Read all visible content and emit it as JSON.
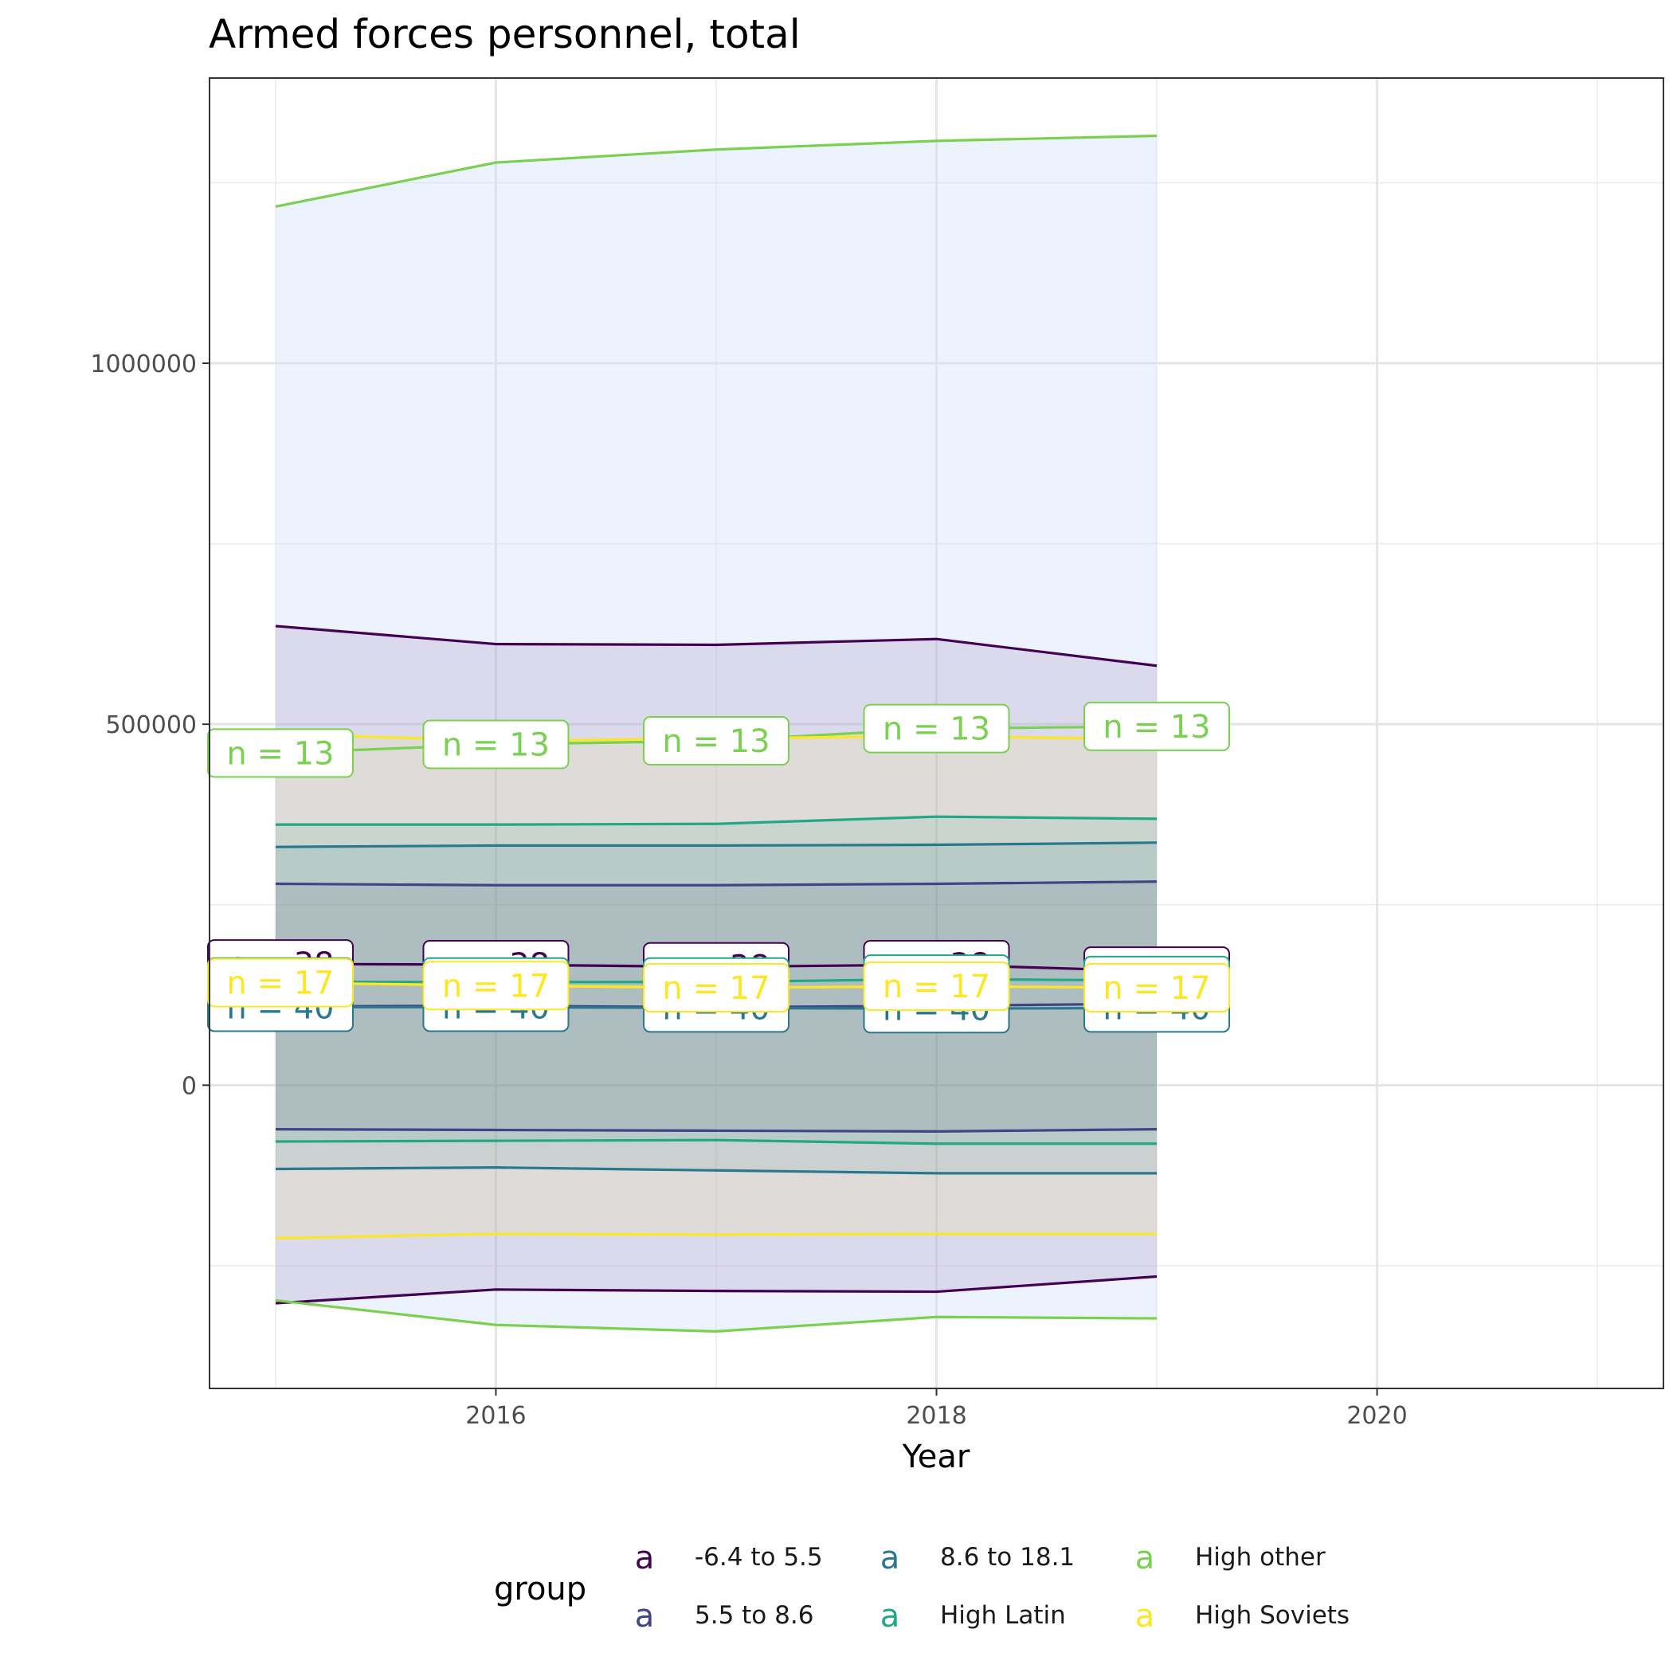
{
  "chart_data": {
    "type": "line",
    "title": "Armed forces personnel, total",
    "xlabel": "Year",
    "ylabel": "",
    "xlim": [
      2014.7,
      2021.3
    ],
    "ylim": [
      -420000,
      1395000
    ],
    "x_ticks": [
      2016,
      2018,
      2020
    ],
    "y_ticks": [
      0,
      500000,
      1000000
    ],
    "x_tick_labels": [
      "2016",
      "2018",
      "2020"
    ],
    "y_tick_labels": [
      "0",
      "500000",
      "1000000"
    ],
    "grid": true,
    "legend_position": "bottom",
    "legend_title": "group",
    "legend_key_glyph": "a",
    "x": [
      2015,
      2016,
      2017,
      2018,
      2019
    ],
    "series": [
      {
        "name": "-6.4 to 5.5",
        "color": "#440154",
        "label_text": "n = 38",
        "mean": [
          168000,
          167000,
          164000,
          167000,
          158000
        ],
        "upper": [
          636000,
          611000,
          610000,
          618000,
          581000
        ],
        "lower": [
          -302000,
          -283000,
          -285000,
          -286000,
          -265000
        ]
      },
      {
        "name": "5.5 to 8.6",
        "color": "#414487",
        "label_text": "n = 40",
        "mean": [
          109000,
          110000,
          108000,
          110000,
          113000
        ],
        "upper": [
          279000,
          277000,
          277000,
          279000,
          282000
        ],
        "lower": [
          -61000,
          -62000,
          -63000,
          -64000,
          -61000
        ]
      },
      {
        "name": "8.6 to 18.1",
        "color": "#2A788E",
        "label_text": "n = 40",
        "mean": [
          108000,
          108000,
          107000,
          106000,
          107000
        ],
        "upper": [
          330000,
          332000,
          332000,
          333000,
          336000
        ],
        "lower": [
          -116000,
          -114000,
          -118000,
          -122000,
          -122000
        ]
      },
      {
        "name": "High Latin",
        "color": "#22A884",
        "label_text": "n = 33",
        "mean": [
          143000,
          143000,
          143000,
          147000,
          145000
        ],
        "upper": [
          361000,
          361000,
          362000,
          372000,
          369000
        ],
        "lower": [
          -78000,
          -77000,
          -76000,
          -81000,
          -81000
        ]
      },
      {
        "name": "High other",
        "color": "#7AD151",
        "label_text": "n = 13",
        "mean": [
          460000,
          472000,
          477000,
          494000,
          497000
        ],
        "upper": [
          1217000,
          1278000,
          1296000,
          1308000,
          1315000
        ],
        "lower": [
          -298000,
          -332000,
          -341000,
          -321000,
          -323000
        ]
      },
      {
        "name": "High Soviets",
        "color": "#FDE725",
        "label_text": "n = 17",
        "mean": [
          142000,
          138000,
          135000,
          137000,
          135000
        ],
        "upper": [
          487000,
          477000,
          480000,
          484000,
          479000
        ],
        "lower": [
          -212000,
          -206000,
          -207000,
          -206000,
          -206000
        ]
      }
    ]
  }
}
